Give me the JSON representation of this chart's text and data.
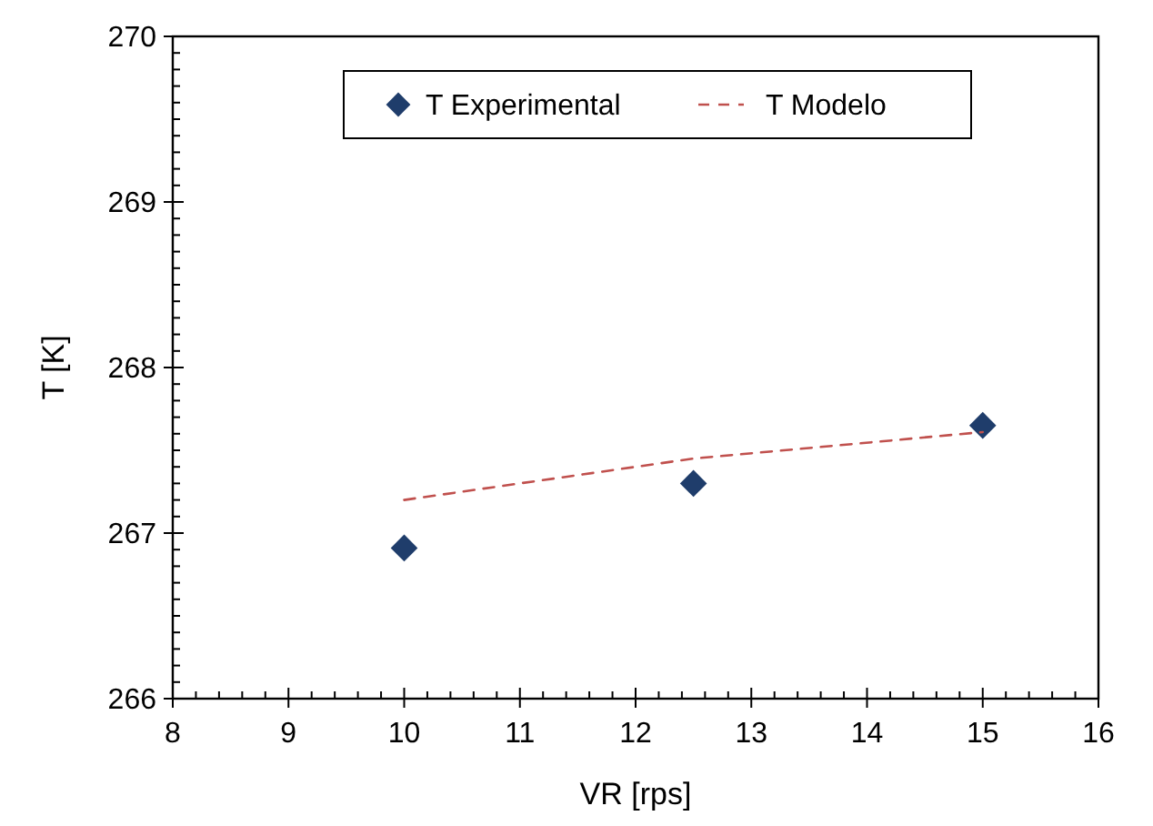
{
  "chart_data": {
    "type": "scatter",
    "xlabel": "VR [rps]",
    "ylabel": "T [K]",
    "xlim": [
      8,
      16
    ],
    "xticks": [
      8,
      9,
      10,
      11,
      12,
      13,
      14,
      15,
      16
    ],
    "ylim": [
      266,
      270
    ],
    "yticks": [
      266,
      267,
      268,
      269,
      270
    ],
    "grid": false,
    "legend": "top",
    "series": [
      {
        "name": "T Experimental",
        "marker": "diamond",
        "color": "#1f3d6b",
        "x": [
          10,
          12.5,
          15
        ],
        "values": [
          266.91,
          267.3,
          267.65
        ]
      },
      {
        "name": "T Modelo",
        "type": "line",
        "marker": "none",
        "line_style": "dashed",
        "color": "#c0504d",
        "x": [
          10,
          12.5,
          15
        ],
        "values": [
          267.2,
          267.45,
          267.61
        ]
      }
    ]
  }
}
